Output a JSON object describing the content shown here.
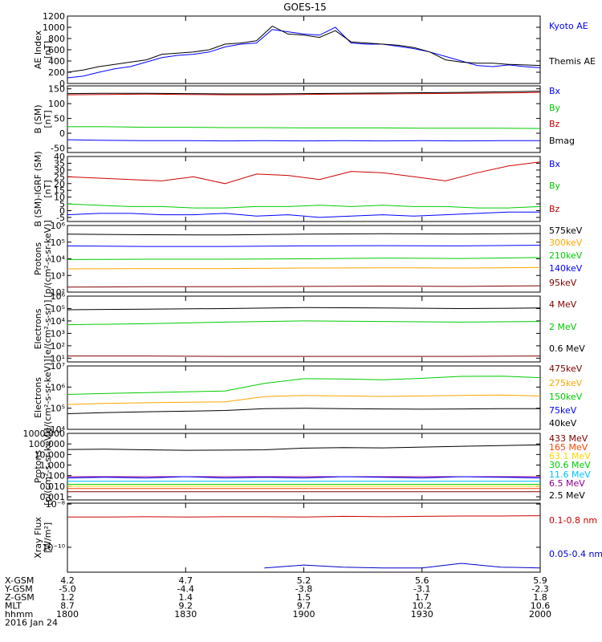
{
  "title": "GOES-15",
  "footer": {
    "rows": [
      {
        "label": "X-GSM",
        "values": [
          "4.2",
          "4.7",
          "5.2",
          "5.6",
          "5.9"
        ]
      },
      {
        "label": "Y-GSM",
        "values": [
          "-5.0",
          "-4.4",
          "-3.8",
          "-3.1",
          "-2.3"
        ]
      },
      {
        "label": "Z-GSM",
        "values": [
          "1.2",
          "1.4",
          "1.5",
          "1.7",
          "1.8"
        ]
      },
      {
        "label": "MLT",
        "values": [
          "8.7",
          "9.2",
          "9.7",
          "10.2",
          "10.6"
        ]
      },
      {
        "label": "hhmm",
        "values": [
          "1800",
          "1830",
          "1900",
          "1930",
          "2000"
        ]
      }
    ],
    "date": "2016 Jan 24"
  },
  "chart_data": [
    {
      "type": "line",
      "ylabel": [
        "AE Index",
        "[nT]"
      ],
      "ylim": [
        0,
        1200
      ],
      "scale": "linear",
      "ticks": [
        [
          0,
          "0"
        ],
        [
          200,
          "200"
        ],
        [
          400,
          "400"
        ],
        [
          600,
          "600"
        ],
        [
          800,
          "800"
        ],
        [
          1000,
          "1000"
        ],
        [
          1200,
          "1200"
        ]
      ],
      "x": [
        0,
        4,
        8,
        12,
        16,
        20,
        24,
        28,
        32,
        36,
        40,
        44,
        48,
        52,
        56,
        60,
        64,
        68,
        72,
        76,
        80,
        84,
        88,
        92,
        96,
        100,
        104,
        108,
        112,
        116,
        120
      ],
      "series": [
        {
          "name": "Kyoto AE",
          "color": "#0000ff",
          "values": [
            100,
            130,
            200,
            260,
            300,
            380,
            460,
            500,
            520,
            560,
            650,
            700,
            720,
            960,
            920,
            880,
            860,
            1000,
            720,
            700,
            700,
            660,
            620,
            560,
            480,
            400,
            320,
            300,
            330,
            300,
            280
          ]
        },
        {
          "name": "Themis AE",
          "color": "#000000",
          "values": [
            200,
            240,
            300,
            340,
            380,
            420,
            520,
            540,
            560,
            600,
            700,
            720,
            760,
            1020,
            880,
            860,
            820,
            940,
            740,
            720,
            700,
            680,
            640,
            560,
            420,
            380,
            360,
            360,
            340,
            330,
            320
          ]
        }
      ]
    },
    {
      "type": "line",
      "ylabel": [
        "B (SM)",
        "[nT]"
      ],
      "ylim": [
        -65,
        160
      ],
      "scale": "linear",
      "ticks": [
        [
          -50,
          "-50"
        ],
        [
          0,
          "0"
        ],
        [
          50,
          "50"
        ],
        [
          100,
          "100"
        ],
        [
          150,
          "150"
        ]
      ],
      "x": [
        0,
        10,
        20,
        30,
        40,
        50,
        60,
        70,
        80,
        90,
        100,
        110,
        120
      ],
      "series": [
        {
          "name": "Bx",
          "color": "#0000ff",
          "values": [
            -22,
            -24,
            -25,
            -25,
            -26,
            -25,
            -26,
            -25,
            -26,
            -25,
            -26,
            -25,
            -25
          ]
        },
        {
          "name": "By",
          "color": "#00cc00",
          "values": [
            22,
            22,
            20,
            20,
            19,
            19,
            18,
            18,
            18,
            17,
            17,
            17,
            16
          ]
        },
        {
          "name": "Bz",
          "color": "#cc0000",
          "values": [
            130,
            131,
            132,
            131,
            130,
            130,
            131,
            132,
            133,
            134,
            135,
            136,
            138
          ]
        },
        {
          "name": "Bmag",
          "color": "#000000",
          "values": [
            134,
            135,
            135,
            134,
            133,
            133,
            134,
            135,
            136,
            137,
            138,
            140,
            142
          ]
        }
      ]
    },
    {
      "type": "line",
      "ylabel": [
        "B (SM)-IGRF (SM)",
        "[nT]"
      ],
      "ylim": [
        -8,
        40
      ],
      "scale": "linear",
      "ticks": [
        [
          -5,
          "-5"
        ],
        [
          0,
          "0"
        ],
        [
          5,
          "5"
        ],
        [
          10,
          "10"
        ],
        [
          15,
          "15"
        ],
        [
          20,
          "20"
        ],
        [
          25,
          "25"
        ],
        [
          30,
          "30"
        ],
        [
          35,
          "35"
        ],
        [
          40,
          "40"
        ]
      ],
      "x": [
        0,
        8,
        16,
        24,
        32,
        40,
        48,
        56,
        64,
        72,
        80,
        88,
        96,
        104,
        112,
        120
      ],
      "series": [
        {
          "name": "Bx",
          "color": "#0000ff",
          "values": [
            -3,
            -2,
            -2,
            -3,
            -3,
            -2,
            -4,
            -3,
            -5,
            -4,
            -3,
            -4,
            -3,
            -2,
            -1,
            -1
          ]
        },
        {
          "name": "By",
          "color": "#00cc00",
          "values": [
            5,
            4,
            3,
            3,
            2,
            2,
            3,
            3,
            4,
            3,
            4,
            3,
            3,
            2,
            2,
            3
          ]
        },
        {
          "name": "Bz",
          "color": "#cc0000",
          "values": [
            25,
            24,
            23,
            22,
            25,
            20,
            27,
            26,
            23,
            29,
            28,
            25,
            22,
            28,
            33,
            36
          ]
        }
      ]
    },
    {
      "type": "line",
      "ylabel": [
        "Protons",
        "[p/(cm²-s-sr-keV)]"
      ],
      "ylim": [
        100,
        1000000
      ],
      "scale": "log",
      "ticks": [
        [
          100,
          "10²"
        ],
        [
          1000,
          "10³"
        ],
        [
          10000,
          "10⁴"
        ],
        [
          100000,
          "10⁵"
        ],
        [
          1000000,
          "10⁶"
        ]
      ],
      "x": [
        0,
        20,
        40,
        60,
        80,
        100,
        120
      ],
      "series": [
        {
          "name": "575keV",
          "color": "#000000",
          "values": [
            300000,
            280000,
            270000,
            300000,
            320000,
            310000,
            330000
          ]
        },
        {
          "name": "300keV",
          "color": "#ffa500",
          "values": [
            2500,
            2600,
            2600,
            2800,
            2900,
            2800,
            3000
          ]
        },
        {
          "name": "210keV",
          "color": "#00cc00",
          "values": [
            9000,
            9500,
            9500,
            10000,
            11000,
            10500,
            12000
          ]
        },
        {
          "name": "140keV",
          "color": "#0000ff",
          "values": [
            60000,
            55000,
            55000,
            60000,
            62000,
            60000,
            65000
          ]
        },
        {
          "name": "95keV",
          "color": "#800000",
          "values": [
            200,
            210,
            210,
            220,
            230,
            220,
            240
          ]
        }
      ]
    },
    {
      "type": "line",
      "ylabel": [
        "Electrons",
        "[e/(cm²-s-sr)]"
      ],
      "ylim": [
        5,
        1000000
      ],
      "scale": "log",
      "ticks": [
        [
          10,
          "10¹"
        ],
        [
          100,
          "10²"
        ],
        [
          1000,
          "10³"
        ],
        [
          10000,
          "10⁴"
        ],
        [
          100000,
          "10⁵"
        ],
        [
          1000000,
          "10⁶"
        ]
      ],
      "x": [
        0,
        20,
        40,
        60,
        80,
        100,
        120
      ],
      "series": [
        {
          "name": "4 MeV",
          "color": "#800000",
          "values": [
            15,
            15,
            14,
            14,
            14,
            14,
            15
          ]
        },
        {
          "name": "2 MeV",
          "color": "#00cc00",
          "values": [
            5000,
            6000,
            8000,
            10000,
            9000,
            8000,
            9000
          ]
        },
        {
          "name": "0.6 MeV",
          "color": "#000000",
          "values": [
            80000,
            90000,
            100000,
            120000,
            110000,
            100000,
            110000
          ]
        }
      ]
    },
    {
      "type": "line",
      "ylabel": [
        "Electrons",
        "[e/(cm²-s-sr-keV)]"
      ],
      "ylim": [
        10000,
        10000000
      ],
      "scale": "log",
      "ticks": [
        [
          10000,
          "10⁴"
        ],
        [
          100000,
          "10⁵"
        ],
        [
          1000000,
          "10⁶"
        ],
        [
          10000000,
          "10⁷"
        ]
      ],
      "x": [
        0,
        10,
        20,
        30,
        40,
        50,
        60,
        70,
        80,
        90,
        100,
        110,
        120
      ],
      "series": [
        {
          "name": "475keV",
          "color": "#800000",
          "values": null
        },
        {
          "name": "275keV",
          "color": "#ffa500",
          "values": [
            150000,
            170000,
            180000,
            190000,
            200000,
            350000,
            400000,
            380000,
            360000,
            380000,
            400000,
            420000,
            380000
          ]
        },
        {
          "name": "150keV",
          "color": "#00cc00",
          "values": [
            450000,
            500000,
            550000,
            600000,
            650000,
            1500000,
            2500000,
            2400000,
            2200000,
            2600000,
            3200000,
            3300000,
            2800000
          ]
        },
        {
          "name": "75keV",
          "color": "#0000ff",
          "values": null
        },
        {
          "name": "40keV",
          "color": "#000000",
          "values": [
            55000,
            62000,
            68000,
            72000,
            78000,
            95000,
            100000,
            95000,
            92000,
            90000,
            92000,
            95000,
            95000
          ]
        }
      ]
    },
    {
      "type": "line",
      "ylabel": [
        "Protons",
        "[p/(cm²-s-sr-keV)]"
      ],
      "ylim": [
        0.0005,
        1000
      ],
      "scale": "log",
      "ticks": [
        [
          0.001,
          "0.001"
        ],
        [
          0.01,
          "0.010"
        ],
        [
          0.1,
          "0.100"
        ],
        [
          1,
          "1.000"
        ],
        [
          10,
          "10.000"
        ],
        [
          100,
          "100.000"
        ],
        [
          1000,
          "1000.000"
        ]
      ],
      "x": [
        0,
        10,
        20,
        30,
        40,
        50,
        60,
        70,
        80,
        90,
        100,
        110,
        120
      ],
      "series": [
        {
          "name": "433 MeV",
          "color": "#800000",
          "values": [
            0.003,
            0.003,
            0.003,
            0.003,
            0.003,
            0.003,
            0.003,
            0.003,
            0.003,
            0.003,
            0.003,
            0.003,
            0.003
          ]
        },
        {
          "name": "165 MeV",
          "color": "#ff4500",
          "values": [
            0.006,
            0.006,
            0.006,
            0.006,
            0.006,
            0.006,
            0.006,
            0.006,
            0.006,
            0.006,
            0.006,
            0.006,
            0.006
          ]
        },
        {
          "name": "63.1 MeV",
          "color": "#ffd700",
          "values": [
            0.01,
            0.01,
            0.01,
            0.01,
            0.01,
            0.01,
            0.01,
            0.01,
            0.01,
            0.01,
            0.01,
            0.01,
            0.01
          ]
        },
        {
          "name": "30.6 MeV",
          "color": "#00cc00",
          "values": [
            0.015,
            0.015,
            0.015,
            0.015,
            0.015,
            0.015,
            0.015,
            0.015,
            0.015,
            0.015,
            0.015,
            0.015,
            0.015
          ]
        },
        {
          "name": "11.6 MeV",
          "color": "#00bfff",
          "values": [
            0.03,
            0.03,
            0.03,
            0.03,
            0.03,
            0.03,
            0.03,
            0.03,
            0.03,
            0.03,
            0.03,
            0.03,
            0.03
          ]
        },
        {
          "name": "6.5 MeV",
          "color": "#8b008b",
          "values": [
            0.08,
            0.08,
            0.08,
            0.08,
            0.08,
            0.08,
            0.08,
            0.08,
            0.08,
            0.08,
            0.08,
            0.08,
            0.08
          ]
        },
        {
          "name": "2.5 MeV",
          "color": "#000000",
          "values": [
            30,
            32,
            28,
            25,
            26,
            28,
            40,
            45,
            42,
            50,
            60,
            70,
            80
          ]
        },
        {
          "name": "",
          "color": "#0000ff",
          "values": [
            0.06,
            0.07,
            0.06,
            0.08,
            0.06,
            0.07,
            0.06,
            0.08,
            0.07,
            0.06,
            0.08,
            0.07,
            0.06
          ]
        }
      ]
    },
    {
      "type": "line",
      "ylabel": [
        "Xray Flux",
        "[W/m²]"
      ],
      "ylim": [
        7e-12,
        1.1e-08
      ],
      "scale": "log",
      "ticks": [
        [
          1e-08,
          "10⁻⁸"
        ],
        [
          1e-10,
          "10⁻¹⁰"
        ]
      ],
      "x": [
        0,
        10,
        20,
        30,
        40,
        50,
        60,
        70,
        80,
        90,
        100,
        110,
        120
      ],
      "series": [
        {
          "name": "0.1-0.8 nm",
          "color": "#cc0000",
          "values": [
            2.5e-09,
            2.5e-09,
            2.6e-09,
            2.5e-09,
            2.6e-09,
            2.6e-09,
            2.5e-09,
            2.7e-09,
            2.6e-09,
            2.7e-09,
            2.8e-09,
            2.8e-09,
            2.9e-09
          ]
        },
        {
          "name": "0.05-0.4 nm",
          "color": "#0000cc",
          "values": [
            null,
            null,
            null,
            null,
            null,
            1.1e-11,
            1.5e-11,
            1.2e-11,
            1.1e-11,
            1.1e-11,
            1.8e-11,
            1.2e-11,
            1.1e-11
          ]
        }
      ]
    }
  ]
}
